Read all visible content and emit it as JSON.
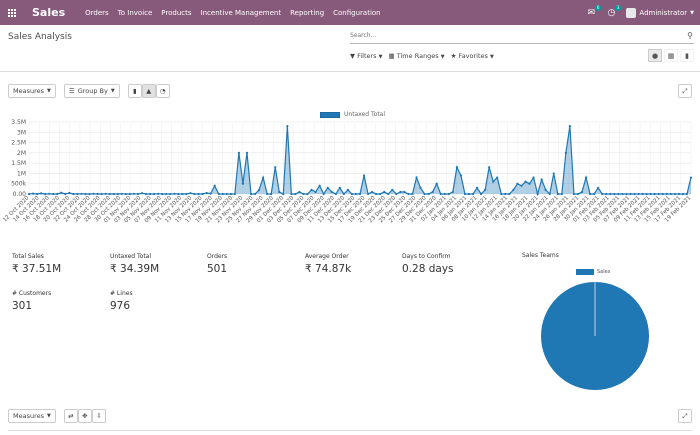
{
  "navbar": {
    "brand": "Sales",
    "menu": [
      "Orders",
      "To Invoice",
      "Products",
      "Incentive Management",
      "Reporting",
      "Configuration"
    ],
    "messages_badge": "6",
    "activities_badge": "3",
    "user": "Administrator",
    "color": "#875a7b"
  },
  "control_panel": {
    "title": "Sales Analysis",
    "search_placeholder": "Search...",
    "filters_label": "Filters",
    "time_ranges_label": "Time Ranges",
    "favorites_label": "Favorites"
  },
  "dashboard": {
    "measures_label": "Measures",
    "group_by_label": "Group By"
  },
  "chart_data": {
    "type": "line",
    "legend": "Untaxed Total",
    "color": "#1f77b4",
    "ylim": [
      0,
      3500000
    ],
    "yticks": [
      "0.00",
      "500k",
      "1M",
      "1.5M",
      "2M",
      "2.5M",
      "3M",
      "3.5M"
    ],
    "xticks": [
      "12 Oct 2020",
      "14 Oct 2020",
      "16 Oct 2020",
      "18 Oct 2020",
      "20 Oct 2020",
      "22 Oct 2020",
      "24 Oct 2020",
      "26 Oct 2020",
      "28 Oct 2020",
      "30 Oct 2020",
      "01 Nov 2020",
      "03 Nov 2020",
      "05 Nov 2020",
      "07 Nov 2020",
      "09 Nov 2020",
      "11 Nov 2020",
      "13 Nov 2020",
      "15 Nov 2020",
      "17 Nov 2020",
      "19 Nov 2020",
      "21 Nov 2020",
      "23 Nov 2020",
      "25 Nov 2020",
      "27 Nov 2020",
      "29 Nov 2020",
      "01 Dec 2020",
      "03 Dec 2020",
      "05 Dec 2020",
      "07 Dec 2020",
      "09 Dec 2020",
      "11 Dec 2020",
      "13 Dec 2020",
      "15 Dec 2020",
      "17 Dec 2020",
      "19 Dec 2020",
      "21 Dec 2020",
      "23 Dec 2020",
      "25 Dec 2020",
      "27 Dec 2020",
      "29 Dec 2020",
      "31 Dec 2020",
      "02 Jan 2021",
      "04 Jan 2021",
      "06 Jan 2021",
      "08 Jan 2021",
      "10 Jan 2021",
      "12 Jan 2021",
      "14 Jan 2021",
      "16 Jan 2021",
      "18 Jan 2021",
      "20 Jan 2021",
      "22 Jan 2021",
      "24 Jan 2021",
      "26 Jan 2021",
      "28 Jan 2021",
      "30 Jan 2021",
      "01 Feb 2021",
      "03 Feb 2021",
      "05 Feb 2021",
      "07 Feb 2021",
      "09 Feb 2021",
      "11 Feb 2021",
      "13 Feb 2021",
      "15 Feb 2021",
      "17 Feb 2021",
      "19 Feb 2021"
    ],
    "values": [
      0,
      0,
      0,
      0,
      0,
      0,
      30000,
      0,
      0,
      0,
      0,
      0,
      0,
      0,
      0,
      0,
      0,
      0,
      0,
      0,
      0,
      0,
      0,
      0,
      0,
      0,
      0,
      0,
      0,
      0,
      0,
      0,
      0,
      0,
      0,
      0,
      0,
      0,
      0,
      0,
      0,
      0,
      0,
      0,
      0,
      0,
      30000,
      0,
      0,
      0,
      0,
      0,
      0,
      0,
      0,
      0,
      0,
      0,
      250000,
      0,
      0,
      0,
      0,
      0,
      0,
      0,
      0,
      0,
      0,
      0,
      0,
      2000000,
      500000,
      2000000,
      0,
      0,
      0,
      0,
      0,
      0,
      0,
      0,
      0,
      0,
      0,
      100000,
      0,
      0,
      0,
      0,
      900000,
      200000,
      0,
      0,
      0,
      0,
      0,
      0,
      0,
      0,
      0,
      0,
      0,
      0,
      0,
      1300000,
      0,
      0,
      0,
      0,
      300000,
      0,
      0,
      0,
      0,
      0,
      0,
      0,
      0,
      0,
      0,
      3300000,
      0,
      0,
      0,
      0,
      0,
      0,
      0,
      0,
      0,
      0,
      0,
      0,
      150000,
      0,
      0,
      0,
      0,
      0,
      0,
      0,
      200000,
      0,
      0,
      0,
      0,
      0,
      0,
      0,
      0,
      0,
      0,
      0,
      0,
      350000,
      0,
      0,
      0,
      0,
      0,
      0,
      0,
      0,
      0,
      0,
      0,
      0,
      0,
      0,
      0,
      0,
      0,
      0,
      0,
      0,
      150000,
      0,
      0,
      0,
      0,
      0,
      0,
      0,
      0,
      0,
      0,
      0,
      0,
      0,
      0,
      0,
      0,
      0,
      0,
      0,
      0,
      0,
      0,
      0,
      0,
      0,
      0,
      0,
      0,
      0,
      0,
      0,
      0,
      0,
      0,
      0,
      0,
      0,
      0,
      0,
      0,
      0,
      0,
      0,
      0,
      0,
      0,
      0
    ],
    "points": [
      0,
      20000,
      0,
      30000,
      0,
      10000,
      0,
      0,
      60000,
      0,
      50000,
      0,
      0,
      10000,
      0,
      0,
      10000,
      0,
      0,
      10000,
      0,
      0,
      0,
      10000,
      0,
      0,
      10000,
      0,
      40000,
      0,
      0,
      0,
      10000,
      0,
      0,
      0,
      10000,
      0,
      0,
      0,
      40000,
      0,
      0,
      0,
      50000,
      20000,
      400000,
      0,
      0,
      0,
      0,
      0,
      2000000,
      500000,
      2000000,
      0,
      0,
      200000,
      800000,
      0,
      0,
      1300000,
      100000,
      0,
      3300000,
      0,
      0,
      100000,
      0,
      0,
      200000,
      100000,
      400000,
      0,
      300000,
      100000,
      0,
      300000,
      0,
      200000,
      0,
      0,
      0,
      900000,
      0,
      100000,
      0,
      0,
      100000,
      0,
      200000,
      0,
      100000,
      100000,
      0,
      0,
      800000,
      300000,
      0,
      0,
      100000,
      500000,
      0,
      0,
      0,
      100000,
      1300000,
      900000,
      0,
      0,
      0,
      300000,
      0,
      200000,
      1300000,
      600000,
      800000,
      0,
      0,
      0,
      200000,
      500000,
      400000,
      600000,
      500000,
      800000,
      0,
      700000,
      200000,
      0,
      1000000,
      0,
      0,
      2000000,
      3300000,
      0,
      0,
      100000,
      800000,
      0,
      0,
      300000,
      0,
      0,
      0,
      0,
      0,
      0,
      0,
      0,
      0,
      0,
      0,
      0,
      0,
      0,
      0,
      0,
      0,
      0,
      0,
      0,
      0,
      0,
      800000
    ]
  },
  "kpis": [
    {
      "label": "Total Sales",
      "value": "₹ 37.51M"
    },
    {
      "label": "Untaxed Total",
      "value": "₹ 34.39M"
    },
    {
      "label": "Orders",
      "value": "501"
    },
    {
      "label": "Average Order",
      "value": "₹ 74.87k"
    },
    {
      "label": "Days to Confirm",
      "value": "0.28 days"
    },
    {
      "label": "# Customers",
      "value": "301"
    },
    {
      "label": "# Lines",
      "value": "976"
    }
  ],
  "pie_chart": {
    "title": "Sales Teams",
    "legend": "Sales",
    "slices": [
      {
        "label": "Sales",
        "value": 100
      }
    ],
    "color": "#1f77b4"
  }
}
